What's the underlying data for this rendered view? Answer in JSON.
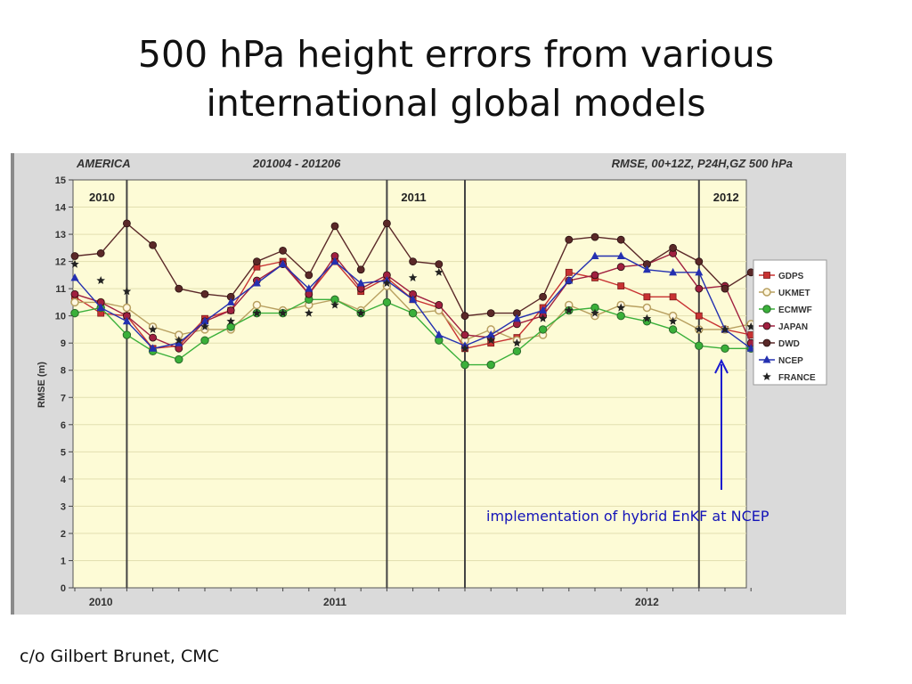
{
  "slide": {
    "title_line1": "500 hPa height errors from various",
    "title_line2": "international global models",
    "note": "implementation of hybrid EnKF at NCEP",
    "credit": "c/o Gilbert Brunet, CMC"
  },
  "chart_data": {
    "type": "line",
    "header_left": "AMERICA",
    "header_center": "201004 - 201206",
    "header_right": "RMSE, 00+12Z, P24H,GZ 500 hPa",
    "ylabel": "RMSE (m)",
    "ylim": [
      0,
      15
    ],
    "yticks": [
      "0",
      "1",
      "2",
      "3",
      "4",
      "5",
      "6",
      "7",
      "8",
      "9",
      "10",
      "11",
      "12",
      "13",
      "14",
      "15"
    ],
    "xticks": [
      {
        "label": "2010",
        "index": 1
      },
      {
        "label": "2011",
        "index": 10
      },
      {
        "label": "2012",
        "index": 22
      }
    ],
    "year_markers": [
      {
        "label": "2010",
        "index": 0
      },
      {
        "label": "2011",
        "index": 12
      },
      {
        "label": "2012",
        "index": 24
      }
    ],
    "year_dividers": [
      2,
      12,
      15,
      24
    ],
    "n_points": 27,
    "series": [
      {
        "name": "GDPS",
        "color": "#c83232",
        "marker": "square",
        "values": [
          10.7,
          10.1,
          10.0,
          8.8,
          8.9,
          9.9,
          10.2,
          11.8,
          12.0,
          10.8,
          12.0,
          10.9,
          11.4,
          10.6,
          10.3,
          8.8,
          9.0,
          9.2,
          10.3,
          11.6,
          11.4,
          11.1,
          10.7,
          10.7,
          10.0,
          9.5,
          9.3
        ]
      },
      {
        "name": "UKMET",
        "color": "#b8a060",
        "marker": "circle-open",
        "values": [
          10.5,
          10.5,
          10.3,
          9.6,
          9.3,
          9.5,
          9.5,
          10.4,
          10.2,
          10.4,
          10.6,
          10.2,
          11.1,
          10.1,
          10.2,
          9.1,
          9.5,
          9.1,
          9.3,
          10.4,
          10.0,
          10.4,
          10.3,
          10.0,
          9.5,
          9.5,
          9.7
        ]
      },
      {
        "name": "ECMWF",
        "color": "#3ab03a",
        "marker": "circle-green",
        "values": [
          10.1,
          10.3,
          9.3,
          8.7,
          8.4,
          9.1,
          9.6,
          10.1,
          10.1,
          10.6,
          10.6,
          10.1,
          10.5,
          10.1,
          9.1,
          8.2,
          8.2,
          8.7,
          9.5,
          10.2,
          10.3,
          10.0,
          9.8,
          9.5,
          8.9,
          8.8,
          8.8
        ]
      },
      {
        "name": "JAPAN",
        "color": "#a02040",
        "marker": "circle-dark",
        "values": [
          10.8,
          10.5,
          10.0,
          9.2,
          8.8,
          9.8,
          10.2,
          11.3,
          11.9,
          10.8,
          12.2,
          11.0,
          11.5,
          10.8,
          10.4,
          9.3,
          9.2,
          9.7,
          10.0,
          11.3,
          11.5,
          11.8,
          11.9,
          12.3,
          11.0,
          11.1,
          9.0
        ]
      },
      {
        "name": "DWD",
        "color": "#5a2828",
        "marker": "circle-dark",
        "values": [
          12.2,
          12.3,
          13.4,
          12.6,
          11.0,
          10.8,
          10.7,
          12.0,
          12.4,
          11.5,
          13.3,
          11.7,
          13.4,
          12.0,
          11.9,
          10.0,
          10.1,
          10.1,
          10.7,
          12.8,
          12.9,
          12.8,
          11.9,
          12.5,
          12.0,
          11.0,
          11.6
        ]
      },
      {
        "name": "NCEP",
        "color": "#2430b0",
        "marker": "triangle",
        "values": [
          11.4,
          10.3,
          9.8,
          8.8,
          9.0,
          9.8,
          10.5,
          11.2,
          11.9,
          11.0,
          12.0,
          11.2,
          11.3,
          10.6,
          9.3,
          8.9,
          9.3,
          9.9,
          10.2,
          11.3,
          12.2,
          12.2,
          11.7,
          11.6,
          11.6,
          9.5,
          8.8
        ]
      },
      {
        "name": "FRANCE",
        "color": "#222222",
        "marker": "star",
        "values": [
          11.9,
          11.3,
          10.9,
          9.5,
          9.1,
          9.6,
          9.8,
          10.1,
          10.1,
          10.1,
          10.4,
          10.1,
          11.2,
          11.4,
          11.6,
          8.8,
          9.1,
          9.0,
          9.9,
          10.2,
          10.1,
          10.3,
          9.9,
          9.8,
          9.5,
          9.5,
          9.6
        ]
      }
    ]
  }
}
